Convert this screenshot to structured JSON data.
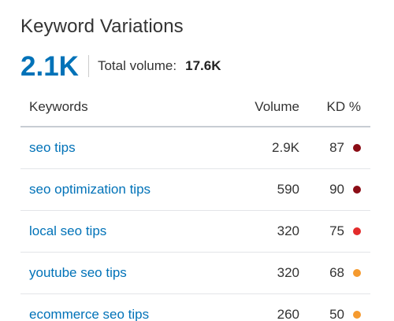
{
  "widget": {
    "title": "Keyword Variations",
    "count": "2.1K",
    "total_volume_label": "Total volume:",
    "total_volume_value": "17.6K"
  },
  "table": {
    "headers": {
      "keywords": "Keywords",
      "volume": "Volume",
      "kd": "KD %"
    },
    "rows": [
      {
        "keyword": "seo tips",
        "volume": "2.9K",
        "kd": "87",
        "kd_color": "#8b0d16"
      },
      {
        "keyword": "seo optimization tips",
        "volume": "590",
        "kd": "90",
        "kd_color": "#8b0d16"
      },
      {
        "keyword": "local seo tips",
        "volume": "320",
        "kd": "75",
        "kd_color": "#e32b2b"
      },
      {
        "keyword": "youtube seo tips",
        "volume": "320",
        "kd": "68",
        "kd_color": "#f59a2f"
      },
      {
        "keyword": "ecommerce seo tips",
        "volume": "260",
        "kd": "50",
        "kd_color": "#f59a2f"
      }
    ]
  },
  "colors": {
    "accent": "#0072b8",
    "text": "#333333"
  }
}
